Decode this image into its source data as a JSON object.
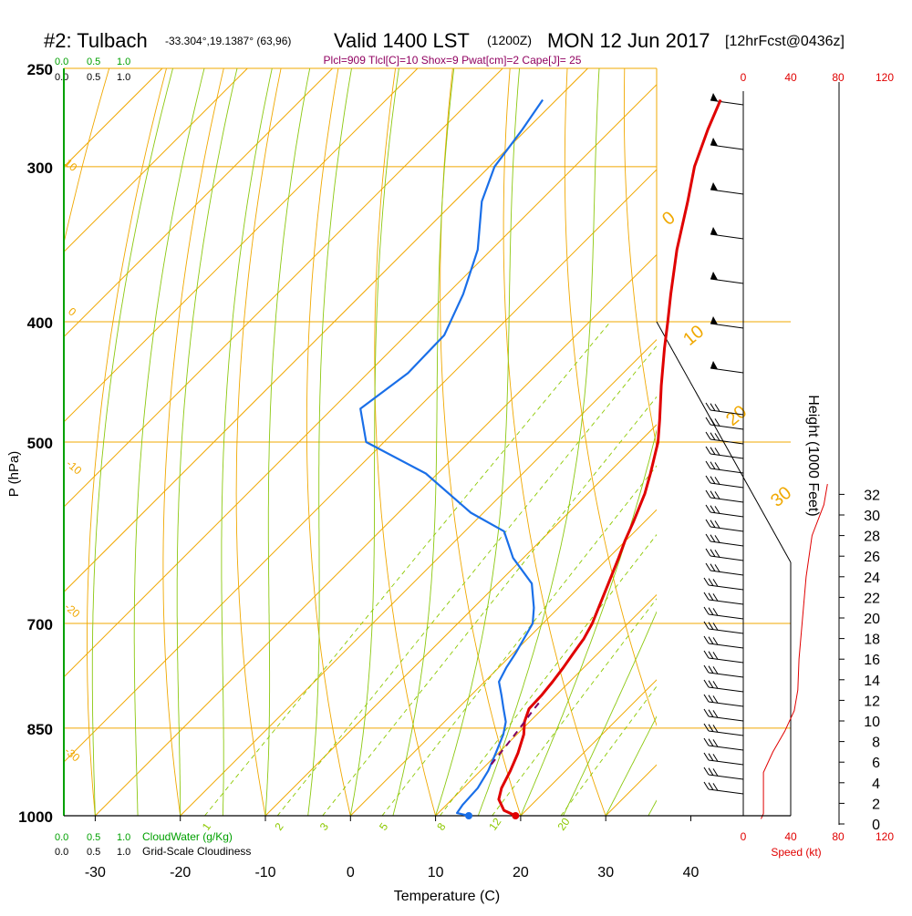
{
  "header": {
    "station": "#2: Tulbach",
    "coords": "-33.304°,19.1387° (63,96)",
    "valid": "Valid 1400 LST",
    "zulu": "(1200Z)",
    "date": "MON 12 Jun 2017",
    "forecast": "[12hrFcst@0436z]"
  },
  "indices": {
    "text": "Plcl=909 Tlcl[C]=10 Shox=9 Pwat[cm]=2 Cape[J]= 25"
  },
  "colors": {
    "temperature": "#e00000",
    "dewpoint": "#1a6fe8",
    "isotherm": "#f0a800",
    "dry_adiabat": "#8cc810",
    "moist_adiabat": "#b4dc3c",
    "mixing_ratio": "#8cc800",
    "cloudwater": "#00a000",
    "parcel": "#800060",
    "windspeed": "#e00000",
    "title_indices": "#900060"
  },
  "left_scales": {
    "cloudwater_ticks_top": [
      "0.0",
      "0.5",
      "1.0"
    ],
    "cloudiness_ticks_top": [
      "0.0",
      "0.5",
      "1.0"
    ],
    "cloudwater_ticks_bottom": [
      "0.0",
      "0.5",
      "1.0"
    ],
    "cloudwater_label": "CloudWater (g/Kg)",
    "cloudiness_ticks_bottom": [
      "0.0",
      "0.5",
      "1.0"
    ],
    "cloudiness_label": "Grid-Scale Cloudiness"
  },
  "right_scales": {
    "speed_ticks": [
      "0",
      "40",
      "80",
      "120"
    ],
    "speed_label": "Speed (kt)",
    "height_label": "Height (1000 Feet)",
    "height_ticks": [
      "0",
      "2",
      "4",
      "6",
      "8",
      "10",
      "12",
      "14",
      "16",
      "18",
      "20",
      "22",
      "24",
      "26",
      "28",
      "30",
      "32"
    ]
  },
  "chart_data": {
    "type": "line",
    "subtype": "skew-t log-p sounding",
    "xlabel": "Temperature (C)",
    "ylabel": "P (hPa)",
    "x_ticks": [
      -30,
      -20,
      -10,
      0,
      10,
      20,
      30,
      40
    ],
    "pressure_ticks": [
      250,
      300,
      400,
      500,
      700,
      850,
      1000
    ],
    "pressure_range": [
      250,
      1000
    ],
    "surface": {
      "temperature": 19.4,
      "dewpoint": 13.9,
      "pressure": 1000
    },
    "series": [
      {
        "name": "Temperature",
        "points": [
          {
            "p": 1000,
            "t": 19.4
          },
          {
            "p": 990,
            "t": 17.4
          },
          {
            "p": 970,
            "t": 15.5
          },
          {
            "p": 950,
            "t": 14.5
          },
          {
            "p": 920,
            "t": 13.5
          },
          {
            "p": 890,
            "t": 12.3
          },
          {
            "p": 860,
            "t": 10.8
          },
          {
            "p": 840,
            "t": 9.4
          },
          {
            "p": 820,
            "t": 8.4
          },
          {
            "p": 800,
            "t": 8.3
          },
          {
            "p": 780,
            "t": 8.0
          },
          {
            "p": 760,
            "t": 7.6
          },
          {
            "p": 740,
            "t": 7.1
          },
          {
            "p": 720,
            "t": 6.6
          },
          {
            "p": 700,
            "t": 5.8
          },
          {
            "p": 680,
            "t": 4.7
          },
          {
            "p": 650,
            "t": 3.0
          },
          {
            "p": 620,
            "t": 1.2
          },
          {
            "p": 600,
            "t": -0.1
          },
          {
            "p": 580,
            "t": -1.3
          },
          {
            "p": 550,
            "t": -3.3
          },
          {
            "p": 530,
            "t": -5.0
          },
          {
            "p": 500,
            "t": -7.8
          },
          {
            "p": 480,
            "t": -10.2
          },
          {
            "p": 450,
            "t": -14.1
          },
          {
            "p": 420,
            "t": -18.1
          },
          {
            "p": 400,
            "t": -20.8
          },
          {
            "p": 380,
            "t": -23.7
          },
          {
            "p": 350,
            "t": -28.2
          },
          {
            "p": 320,
            "t": -32.6
          },
          {
            "p": 300,
            "t": -35.9
          },
          {
            "p": 280,
            "t": -38.7
          },
          {
            "p": 265,
            "t": -40.7
          }
        ]
      },
      {
        "name": "Dewpoint",
        "points": [
          {
            "p": 1000,
            "t": 13.9
          },
          {
            "p": 995,
            "t": 12.2
          },
          {
            "p": 980,
            "t": 11.9
          },
          {
            "p": 950,
            "t": 11.7
          },
          {
            "p": 920,
            "t": 10.9
          },
          {
            "p": 890,
            "t": 9.7
          },
          {
            "p": 860,
            "t": 8.4
          },
          {
            "p": 840,
            "t": 7.2
          },
          {
            "p": 820,
            "t": 5.4
          },
          {
            "p": 800,
            "t": 3.6
          },
          {
            "p": 780,
            "t": 1.7
          },
          {
            "p": 760,
            "t": 0.9
          },
          {
            "p": 740,
            "t": 0.3
          },
          {
            "p": 700,
            "t": -1.2
          },
          {
            "p": 680,
            "t": -2.9
          },
          {
            "p": 650,
            "t": -6.0
          },
          {
            "p": 620,
            "t": -11.2
          },
          {
            "p": 590,
            "t": -15.4
          },
          {
            "p": 570,
            "t": -21.5
          },
          {
            "p": 530,
            "t": -31.4
          },
          {
            "p": 500,
            "t": -42.1
          },
          {
            "p": 470,
            "t": -46.7
          },
          {
            "p": 440,
            "t": -45.3
          },
          {
            "p": 410,
            "t": -45.5
          },
          {
            "p": 380,
            "t": -48.1
          },
          {
            "p": 350,
            "t": -51.6
          },
          {
            "p": 320,
            "t": -56.8
          },
          {
            "p": 300,
            "t": -59.4
          },
          {
            "p": 280,
            "t": -60.5
          },
          {
            "p": 265,
            "t": -61.6
          }
        ]
      },
      {
        "name": "Parcel",
        "points": [
          {
            "p": 909,
            "t": 10.5
          },
          {
            "p": 880,
            "t": 10.1
          },
          {
            "p": 850,
            "t": 9.6
          },
          {
            "p": 820,
            "t": 9.0
          },
          {
            "p": 805,
            "t": 8.8
          }
        ]
      }
    ],
    "wind_speed_profile": {
      "units": "kt",
      "range": [
        0,
        120
      ],
      "points": [
        {
          "hkft": 0.5,
          "kt": 15
        },
        {
          "hkft": 1,
          "kt": 17
        },
        {
          "hkft": 3,
          "kt": 17
        },
        {
          "hkft": 5,
          "kt": 17
        },
        {
          "hkft": 7,
          "kt": 25
        },
        {
          "hkft": 9,
          "kt": 35
        },
        {
          "hkft": 11,
          "kt": 43
        },
        {
          "hkft": 13,
          "kt": 46
        },
        {
          "hkft": 16,
          "kt": 47
        },
        {
          "hkft": 20,
          "kt": 50
        },
        {
          "hkft": 24,
          "kt": 53
        },
        {
          "hkft": 28,
          "kt": 58
        },
        {
          "hkft": 31,
          "kt": 68
        },
        {
          "hkft": 33,
          "kt": 71
        }
      ]
    },
    "mixing_ratio_labels": [
      "1",
      "2",
      "3",
      "5",
      "8",
      "12",
      "20"
    ],
    "moist_adiabat_labels": [
      "0",
      "10",
      "20",
      "30"
    ],
    "dry_adiabat_labels": [
      "10",
      "0",
      "-10",
      "-20",
      "-30"
    ]
  }
}
